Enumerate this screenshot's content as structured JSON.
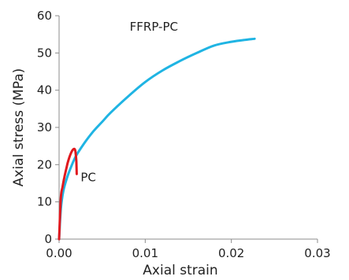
{
  "chart_data": {
    "type": "line",
    "xlabel": "Axial strain",
    "ylabel": "Axial stress (MPa)",
    "xlim": [
      0,
      0.03
    ],
    "ylim": [
      0,
      60
    ],
    "x_ticks": [
      0,
      0.01,
      0.02,
      0.03
    ],
    "x_tick_labels": [
      "0.00",
      "0.01",
      "0.02",
      "0.03"
    ],
    "y_ticks": [
      0,
      10,
      20,
      30,
      40,
      50,
      60
    ],
    "y_tick_labels": [
      "0",
      "10",
      "20",
      "30",
      "40",
      "50",
      "60"
    ],
    "grid": false,
    "series": [
      {
        "name": "FFRP-PC",
        "color": "#1fb4e3",
        "x": [
          0,
          0.0002,
          0.0005,
          0.001,
          0.0015,
          0.002,
          0.003,
          0.004,
          0.005,
          0.006,
          0.008,
          0.01,
          0.012,
          0.014,
          0.016,
          0.018,
          0.02,
          0.0215,
          0.0227
        ],
        "y": [
          0,
          8,
          13,
          17,
          20,
          22.5,
          26,
          29,
          31.5,
          34,
          38.3,
          42.2,
          45.3,
          47.8,
          50,
          52,
          53,
          53.5,
          53.8
        ]
      },
      {
        "name": "PC",
        "color": "#e0191f",
        "x": [
          0,
          0.0002,
          0.0004,
          0.0006,
          0.0008,
          0.001,
          0.0012,
          0.0014,
          0.0016,
          0.0018,
          0.0019,
          0.002,
          0.00205
        ],
        "y": [
          0,
          11,
          14,
          16.5,
          18.5,
          20.5,
          22,
          23.2,
          24,
          24.2,
          23.5,
          21,
          17.5
        ]
      }
    ],
    "annotations": [
      {
        "text": "FFRP-PC",
        "x": 0.0082,
        "y": 56
      },
      {
        "text": "PC",
        "x": 0.0025,
        "y": 15.5
      }
    ]
  }
}
